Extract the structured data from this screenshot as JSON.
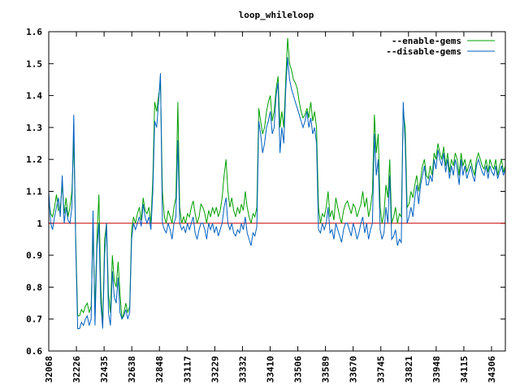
{
  "chart_data": {
    "type": "line",
    "title": "loop_whileloop",
    "ylim": [
      0.6,
      1.6
    ],
    "y_ticks": [
      "0.6",
      "0.7",
      "0.8",
      "0.9",
      "1",
      "1.1",
      "1.2",
      "1.3",
      "1.4",
      "1.5",
      "1.6"
    ],
    "x_tick_labels": [
      "32068",
      "32226",
      "32435",
      "32638",
      "32848",
      "33117",
      "33229",
      "33332",
      "33410",
      "33506",
      "33589",
      "33670",
      "33745",
      "33821",
      "33948",
      "34115",
      "34306"
    ],
    "reference_line": 1.0,
    "legend_position": "top-right",
    "colors": {
      "enable": "#00a000",
      "disable": "#0060c0",
      "reference": "#cc0000"
    },
    "series": [
      {
        "name": "--enable-gems",
        "values": [
          1.07,
          1.03,
          1.02,
          1.05,
          1.09,
          1.04,
          1.05,
          1.12,
          1.03,
          1.08,
          1.02,
          1.05,
          1.1,
          1.26,
          0.95,
          0.71,
          0.71,
          0.73,
          0.72,
          0.74,
          0.75,
          0.72,
          0.74,
          0.98,
          0.73,
          0.95,
          1.09,
          0.8,
          0.68,
          0.95,
          1.0,
          0.78,
          0.72,
          0.9,
          0.82,
          0.8,
          0.88,
          0.78,
          0.7,
          0.72,
          0.75,
          0.72,
          0.74,
          0.98,
          1.02,
          1.0,
          1.03,
          1.05,
          1.01,
          1.08,
          1.04,
          1.03,
          1.05,
          1.0,
          1.14,
          1.38,
          1.35,
          1.4,
          1.44,
          1.1,
          1.02,
          1.0,
          1.04,
          1.02,
          1.0,
          1.05,
          1.08,
          1.38,
          1.05,
          1.0,
          1.02,
          1.0,
          1.03,
          1.02,
          1.05,
          1.07,
          1.03,
          1.0,
          1.02,
          1.06,
          1.05,
          1.03,
          1.0,
          1.04,
          1.02,
          1.05,
          1.03,
          1.05,
          1.02,
          1.04,
          1.08,
          1.15,
          1.2,
          1.1,
          1.05,
          1.08,
          1.04,
          1.02,
          1.05,
          1.03,
          1.06,
          1.04,
          1.1,
          1.05,
          1.02,
          1.0,
          1.03,
          1.02,
          1.05,
          1.36,
          1.32,
          1.28,
          1.3,
          1.35,
          1.38,
          1.4,
          1.32,
          1.35,
          1.42,
          1.46,
          1.3,
          1.35,
          1.3,
          1.45,
          1.58,
          1.5,
          1.48,
          1.45,
          1.44,
          1.42,
          1.38,
          1.35,
          1.33,
          1.34,
          1.36,
          1.33,
          1.38,
          1.32,
          1.35,
          1.3,
          1.05,
          1.0,
          1.03,
          1.02,
          1.05,
          1.1,
          1.02,
          1.04,
          1.01,
          1.08,
          1.05,
          1.02,
          1.0,
          1.04,
          1.06,
          1.07,
          1.05,
          1.03,
          1.06,
          1.05,
          1.02,
          1.04,
          1.06,
          1.1,
          1.05,
          1.08,
          1.02,
          1.05,
          1.1,
          1.34,
          1.22,
          1.28,
          1.05,
          1.0,
          1.03,
          1.12,
          1.08,
          1.2,
          1.0,
          1.02,
          1.05,
          1.0,
          1.03,
          1.02,
          1.35,
          1.3,
          1.05,
          1.06,
          1.1,
          1.08,
          1.12,
          1.15,
          1.1,
          1.14,
          1.18,
          1.2,
          1.15,
          1.14,
          1.18,
          1.15,
          1.22,
          1.2,
          1.25,
          1.22,
          1.2,
          1.24,
          1.18,
          1.22,
          1.16,
          1.2,
          1.18,
          1.22,
          1.2,
          1.15,
          1.22,
          1.18,
          1.2,
          1.16,
          1.18,
          1.2,
          1.17,
          1.15,
          1.2,
          1.22,
          1.2,
          1.18,
          1.17,
          1.2,
          1.16,
          1.2,
          1.18,
          1.17,
          1.2,
          1.15,
          1.18,
          1.2,
          1.16,
          1.18
        ]
      },
      {
        "name": "--disable-gems",
        "values": [
          1.1,
          1.0,
          0.98,
          1.02,
          1.05,
          1.08,
          1.02,
          1.15,
          1.0,
          1.05,
          1.01,
          1.0,
          1.05,
          1.34,
          0.93,
          0.67,
          0.67,
          0.69,
          0.68,
          0.7,
          0.71,
          0.68,
          0.7,
          1.04,
          0.68,
          0.92,
          1.0,
          0.75,
          0.67,
          0.9,
          1.0,
          0.72,
          0.68,
          0.85,
          0.77,
          0.75,
          0.83,
          0.72,
          0.7,
          0.71,
          0.73,
          0.7,
          0.72,
          0.95,
          1.0,
          0.98,
          1.0,
          1.02,
          0.99,
          1.06,
          1.02,
          1.0,
          1.02,
          0.98,
          1.1,
          1.32,
          1.3,
          1.38,
          1.47,
          1.0,
          0.98,
          0.97,
          1.0,
          0.98,
          0.95,
          1.0,
          1.02,
          1.26,
          1.0,
          0.98,
          0.99,
          0.97,
          1.0,
          0.98,
          1.0,
          1.02,
          0.97,
          0.95,
          0.98,
          1.0,
          1.0,
          0.98,
          0.95,
          1.0,
          0.98,
          1.0,
          0.97,
          0.99,
          0.96,
          0.98,
          1.0,
          1.05,
          1.08,
          1.0,
          0.98,
          1.0,
          0.97,
          0.96,
          0.98,
          0.97,
          1.0,
          0.98,
          1.02,
          0.97,
          0.95,
          0.93,
          0.97,
          0.96,
          0.99,
          1.32,
          1.28,
          1.22,
          1.25,
          1.3,
          1.32,
          1.35,
          1.28,
          1.3,
          1.4,
          1.44,
          1.22,
          1.3,
          1.25,
          1.42,
          1.52,
          1.45,
          1.42,
          1.4,
          1.38,
          1.36,
          1.34,
          1.32,
          1.3,
          1.32,
          1.35,
          1.3,
          1.33,
          1.28,
          1.3,
          1.25,
          0.98,
          0.97,
          1.0,
          0.98,
          1.0,
          1.05,
          0.97,
          0.98,
          0.95,
          1.0,
          0.98,
          0.96,
          0.94,
          0.98,
          1.0,
          1.0,
          0.98,
          0.96,
          1.0,
          0.98,
          0.95,
          0.97,
          1.0,
          1.02,
          0.97,
          1.0,
          0.95,
          0.98,
          1.0,
          1.28,
          1.15,
          1.2,
          0.98,
          0.95,
          0.97,
          1.05,
          1.0,
          1.15,
          0.95,
          0.96,
          0.98,
          0.93,
          0.95,
          0.94,
          1.38,
          1.25,
          1.0,
          1.02,
          1.05,
          1.02,
          1.08,
          1.12,
          1.06,
          1.12,
          1.15,
          1.18,
          1.12,
          1.12,
          1.15,
          1.13,
          1.2,
          1.17,
          1.23,
          1.2,
          1.18,
          1.22,
          1.16,
          1.2,
          1.14,
          1.18,
          1.15,
          1.2,
          1.17,
          1.12,
          1.2,
          1.15,
          1.18,
          1.14,
          1.16,
          1.18,
          1.15,
          1.13,
          1.18,
          1.2,
          1.18,
          1.16,
          1.15,
          1.18,
          1.14,
          1.18,
          1.16,
          1.15,
          1.18,
          1.14,
          1.16,
          1.18,
          1.15,
          1.17
        ]
      }
    ]
  }
}
